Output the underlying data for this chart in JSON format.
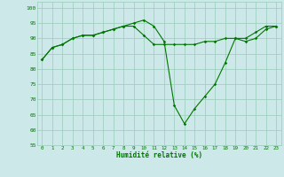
{
  "x_hours": [
    0,
    1,
    2,
    3,
    4,
    5,
    6,
    7,
    8,
    9,
    10,
    11,
    12,
    13,
    14,
    15,
    16,
    17,
    18,
    19,
    20,
    21,
    22,
    23
  ],
  "line1": [
    83,
    87,
    88,
    90,
    91,
    91,
    92,
    93,
    94,
    95,
    96,
    94,
    89,
    68,
    62,
    67,
    71,
    75,
    82,
    90,
    89,
    90,
    93,
    94
  ],
  "line2": [
    83,
    87,
    88,
    90,
    91,
    91,
    92,
    93,
    94,
    94,
    91,
    88,
    88,
    88,
    88,
    88,
    89,
    89,
    90,
    90,
    90,
    92,
    94,
    94
  ],
  "bg_color": "#cce8e8",
  "grid_color": "#99ccbb",
  "line_color": "#007700",
  "xlabel": "Humidité relative (%)",
  "ylim": [
    55,
    102
  ],
  "yticks": [
    55,
    60,
    65,
    70,
    75,
    80,
    85,
    90,
    95,
    100
  ],
  "xticks": [
    0,
    1,
    2,
    3,
    4,
    5,
    6,
    7,
    8,
    9,
    10,
    11,
    12,
    13,
    14,
    15,
    16,
    17,
    18,
    19,
    20,
    21,
    22,
    23
  ],
  "figsize": [
    3.2,
    2.0
  ],
  "dpi": 100
}
